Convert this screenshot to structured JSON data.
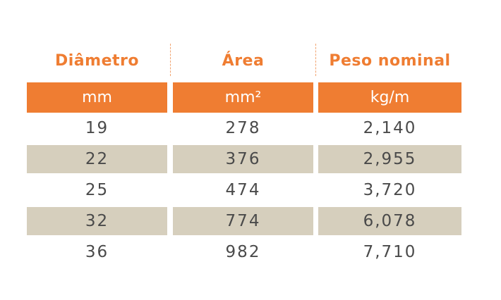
{
  "table": {
    "header": [
      "Diâmetro",
      "Área",
      "Peso nominal"
    ],
    "units": [
      "mm",
      "mm²",
      "kg/m"
    ],
    "rows": [
      [
        19,
        278,
        "2,140"
      ],
      [
        22,
        376,
        "2,955"
      ],
      [
        25,
        474,
        "3,720"
      ],
      [
        32,
        774,
        "6,078"
      ],
      [
        36,
        982,
        "7,710"
      ]
    ]
  }
}
